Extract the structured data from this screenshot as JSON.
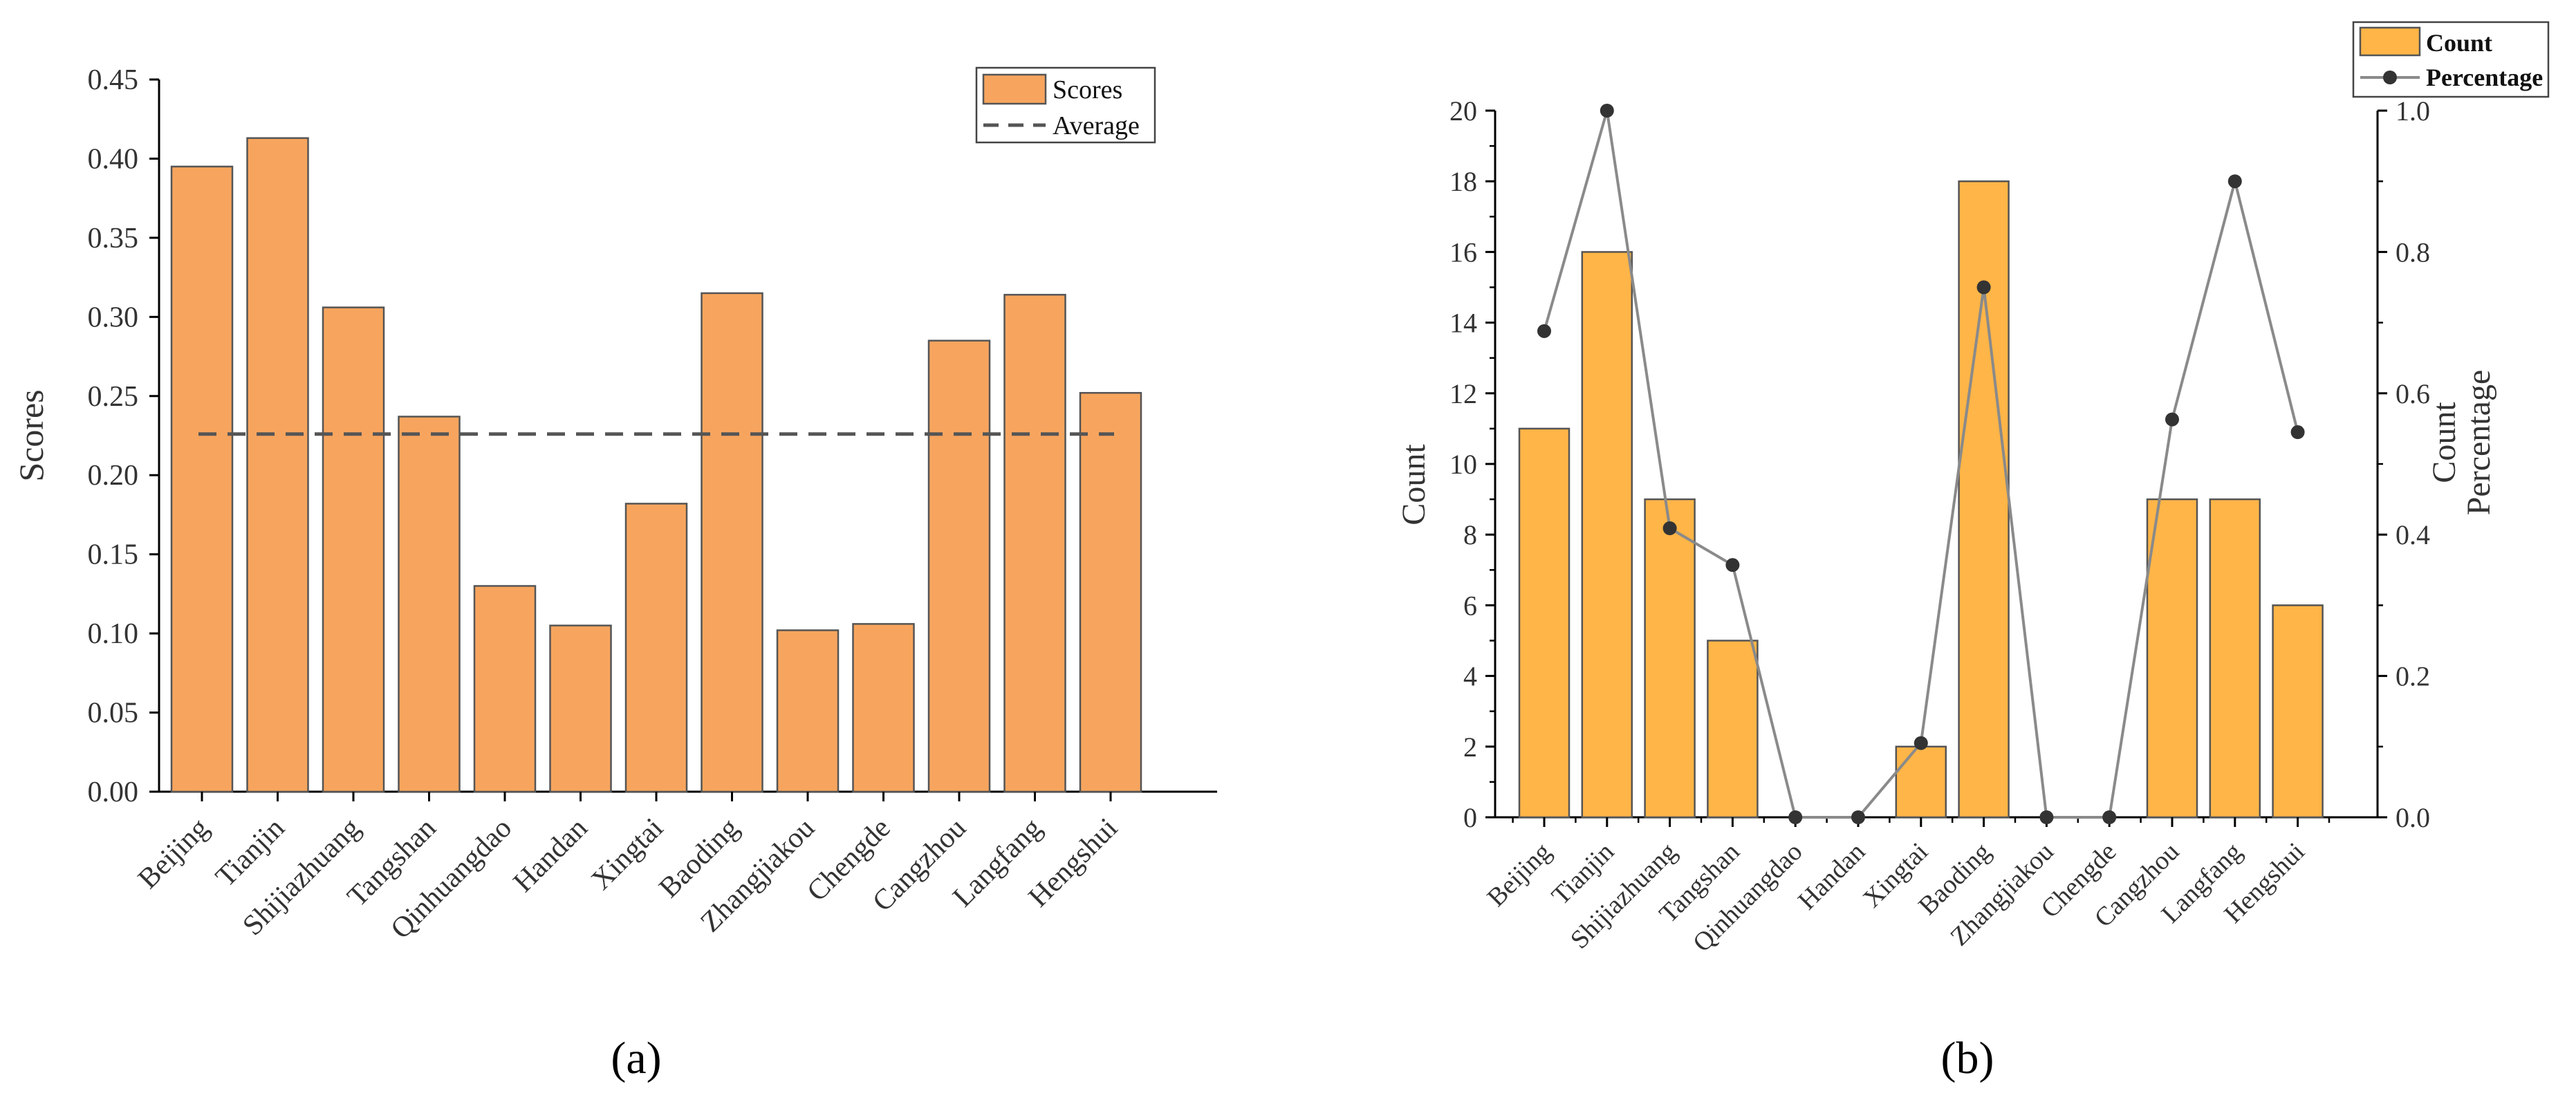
{
  "chart_data": [
    {
      "type": "bar",
      "panel_label": "(a)",
      "categories": [
        "Beijing",
        "Tianjin",
        "Shijiazhuang",
        "Tangshan",
        "Qinhuangdao",
        "Handan",
        "Xingtai",
        "Baoding",
        "Zhangjiakou",
        "Chengde",
        "Cangzhou",
        "Langfang",
        "Hengshui"
      ],
      "series": [
        {
          "name": "Scores",
          "values": [
            0.395,
            0.413,
            0.306,
            0.237,
            0.13,
            0.105,
            0.182,
            0.315,
            0.102,
            0.106,
            0.285,
            0.314,
            0.252
          ],
          "color": "#F7A55E"
        }
      ],
      "reference_line": {
        "name": "Average",
        "value": 0.226,
        "style": "dashed",
        "color": "#555555"
      },
      "ylabel": "Scores",
      "ylim": [
        0,
        0.45
      ],
      "yticks": [
        "0.00",
        "0.05",
        "0.10",
        "0.15",
        "0.20",
        "0.25",
        "0.30",
        "0.35",
        "0.40",
        "0.45"
      ],
      "grid": false,
      "legend_position": "top-right"
    },
    {
      "type": "bar",
      "panel_label": "(b)",
      "categories": [
        "Beijing",
        "Tianjin",
        "Shijiazhuang",
        "Tangshan",
        "Qinhuangdao",
        "Handan",
        "Xingtai",
        "Baoding",
        "Zhangjiakou",
        "Chengde",
        "Cangzhou",
        "Langfang",
        "Hengshui"
      ],
      "series": [
        {
          "name": "Count",
          "axis": "left",
          "values": [
            11,
            16,
            9,
            5,
            0,
            0,
            2,
            18,
            0,
            0,
            9,
            9,
            6
          ],
          "color": "#FFB547"
        },
        {
          "name": "Percentage",
          "axis": "right",
          "type": "line",
          "values": [
            0.688,
            1.0,
            0.409,
            0.357,
            0,
            0,
            0.105,
            0.75,
            0,
            0,
            0.563,
            0.9,
            0.545
          ],
          "color": "#8a8a8a",
          "marker_color": "#333333"
        }
      ],
      "ylabel": "Count",
      "ylabel_right": [
        "Count",
        "Percentage"
      ],
      "ylim": [
        0,
        20
      ],
      "ylim_right": [
        0,
        1.0
      ],
      "yticks": [
        "0",
        "2",
        "4",
        "6",
        "8",
        "10",
        "12",
        "14",
        "16",
        "18",
        "20"
      ],
      "yticks_right": [
        "0.0",
        "0.2",
        "0.4",
        "0.6",
        "0.8",
        "1.0"
      ],
      "grid": false,
      "legend_position": "top-right"
    }
  ]
}
